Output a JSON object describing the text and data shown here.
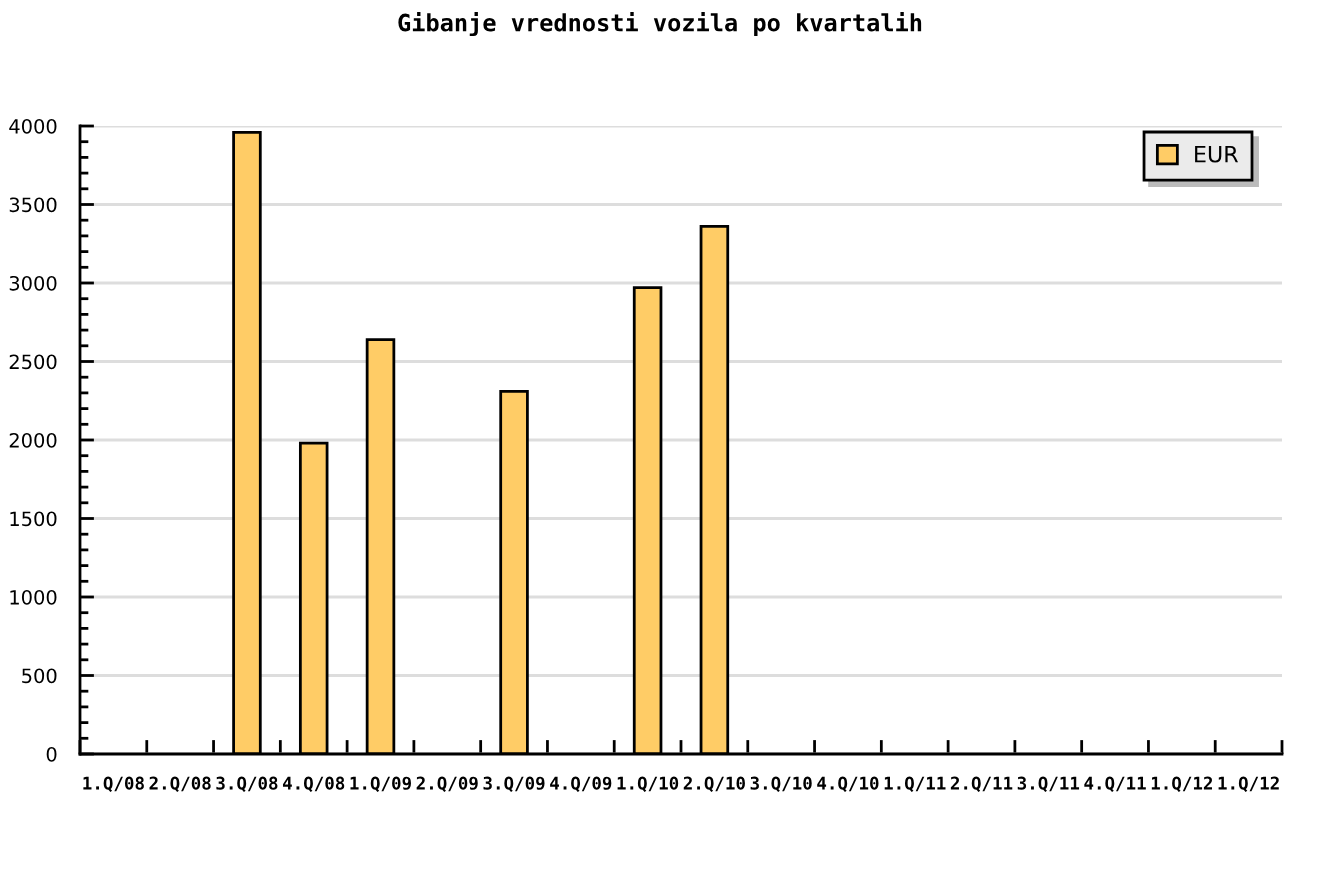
{
  "chart_data": {
    "type": "bar",
    "title": "Gibanje vrednosti vozila po kvartalih",
    "categories": [
      "1.Q/08",
      "2.Q/08",
      "3.Q/08",
      "4.Q/08",
      "1.Q/09",
      "2.Q/09",
      "3.Q/09",
      "4.Q/09",
      "1.Q/10",
      "2.Q/10",
      "3.Q/10",
      "4.Q/10",
      "1.Q/11",
      "2.Q/11",
      "3.Q/11",
      "4.Q/11",
      "1.Q/12",
      "1.Q/12"
    ],
    "series": [
      {
        "name": "EUR",
        "color": "#ffcc66",
        "values": [
          null,
          null,
          3960,
          1980,
          2640,
          null,
          2310,
          null,
          2970,
          3360,
          null,
          null,
          null,
          null,
          null,
          null,
          null,
          null
        ]
      }
    ],
    "ylim": [
      0,
      4000
    ],
    "yticks": [
      0,
      500,
      1000,
      1500,
      2000,
      2500,
      3000,
      3500,
      4000
    ],
    "grid": "y",
    "legend": "top right"
  }
}
